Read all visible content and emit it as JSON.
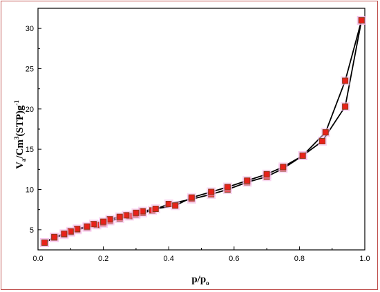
{
  "chart_data": {
    "type": "line",
    "title": "",
    "xlabel": "p/p",
    "xlabel_sub": "o",
    "ylabel_parts": {
      "v": "V",
      "v_sub": "a",
      "mid": "/Cm",
      "mid_sup": "3",
      "stp": "(STP)g",
      "stp_sup": "-1"
    },
    "xlim": [
      0,
      1.0
    ],
    "ylim": [
      2.5,
      32.5
    ],
    "xticks": [
      0.0,
      0.2,
      0.4,
      0.6,
      0.8,
      1.0
    ],
    "xtick_labels": [
      "0.0",
      "0.2",
      "0.4",
      "0.6",
      "0.8",
      "1.0"
    ],
    "yticks": [
      5,
      10,
      15,
      20,
      25,
      30
    ],
    "ytick_labels": [
      "5",
      "10",
      "15",
      "20",
      "25",
      "30"
    ],
    "grid": false,
    "legend": "none",
    "colors": {
      "line": "#000000",
      "marker": "#e8211a",
      "marker_edge": "#8b3a1a",
      "halo": "#f5b8e8",
      "frame": "#c0504d"
    },
    "series": [
      {
        "x": [
          0.02,
          0.05,
          0.08,
          0.1,
          0.12,
          0.15,
          0.18,
          0.2,
          0.22,
          0.25,
          0.28,
          0.3,
          0.32,
          0.35,
          0.4,
          0.47,
          0.53,
          0.58,
          0.64,
          0.7,
          0.75,
          0.81,
          0.87,
          0.94,
          0.99
        ],
        "y": [
          3.4,
          4.0,
          4.4,
          4.7,
          5.0,
          5.3,
          5.6,
          5.8,
          6.1,
          6.4,
          6.7,
          6.9,
          7.1,
          7.4,
          8.2,
          8.8,
          9.4,
          10.0,
          10.9,
          11.6,
          12.6,
          14.2,
          16.0,
          20.3,
          31.0
        ]
      },
      {
        "x": [
          0.99,
          0.94,
          0.88,
          0.81,
          0.75,
          0.7,
          0.64,
          0.58,
          0.53,
          0.47,
          0.42,
          0.36,
          0.32,
          0.3,
          0.27,
          0.25,
          0.22,
          0.2,
          0.17,
          0.15,
          0.12,
          0.1,
          0.08,
          0.05,
          0.02
        ],
        "y": [
          31.0,
          23.5,
          17.1,
          14.2,
          12.8,
          11.9,
          11.1,
          10.3,
          9.7,
          9.0,
          8.0,
          7.6,
          7.3,
          7.1,
          6.8,
          6.6,
          6.3,
          6.0,
          5.7,
          5.4,
          5.1,
          4.8,
          4.5,
          4.1,
          3.4
        ]
      }
    ]
  }
}
